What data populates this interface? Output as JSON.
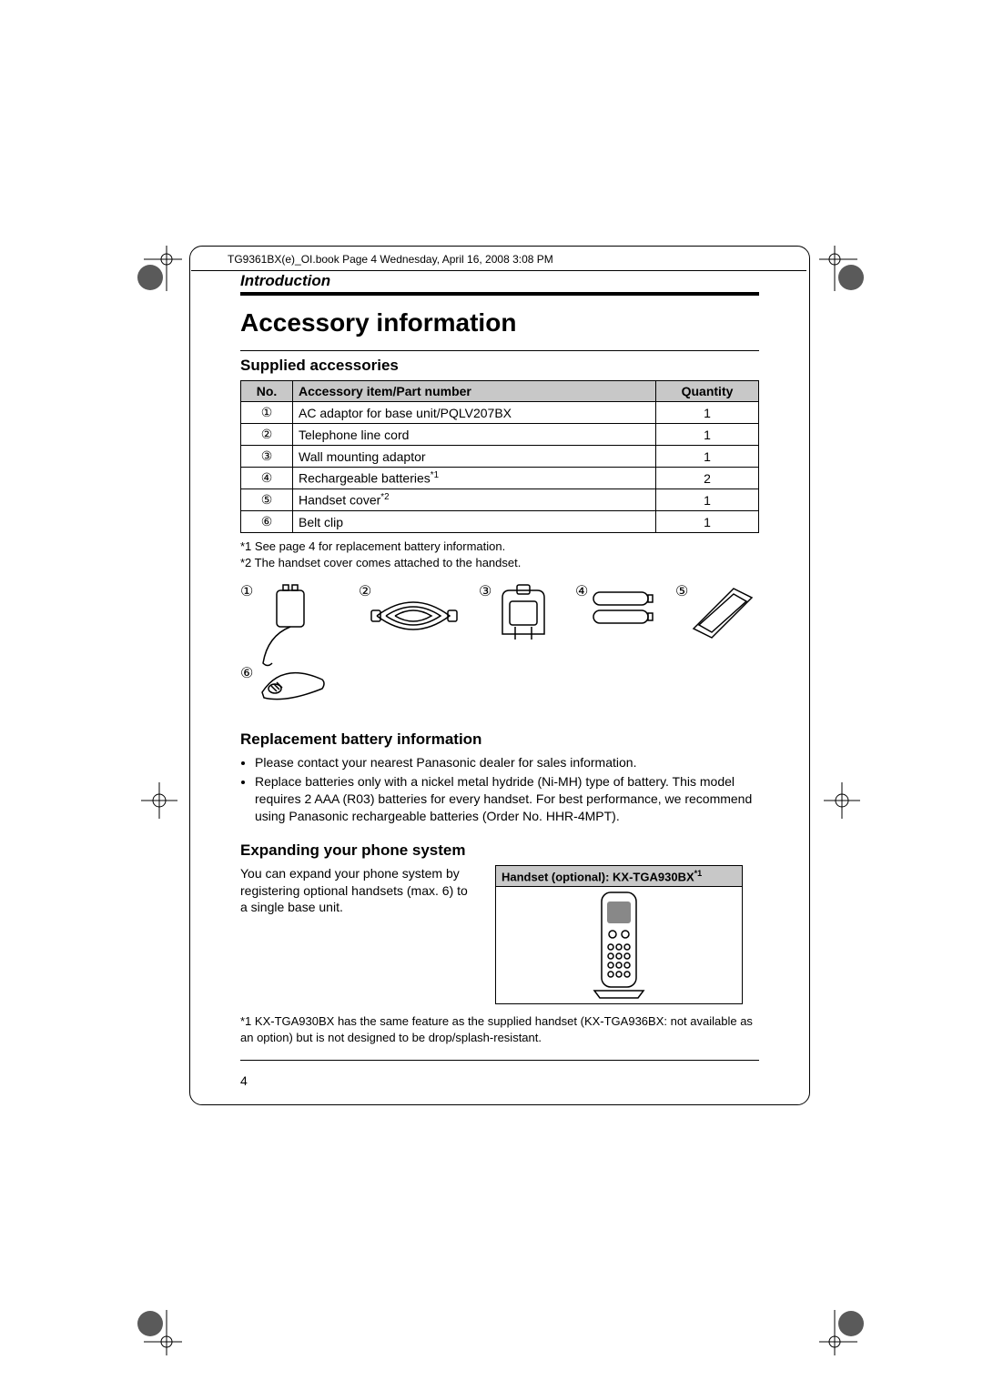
{
  "file_line": "TG9361BX(e)_OI.book  Page 4  Wednesday, April 16, 2008  3:08 PM",
  "section_label": "Introduction",
  "page_title": "Accessory information",
  "supplied": {
    "heading": "Supplied accessories",
    "columns": {
      "no": "No.",
      "item": "Accessory item/Part number",
      "qty": "Quantity"
    },
    "rows": [
      {
        "no": "①",
        "item": "AC adaptor for base unit/PQLV207BX",
        "qty": "1",
        "sup": ""
      },
      {
        "no": "②",
        "item": "Telephone line cord",
        "qty": "1",
        "sup": ""
      },
      {
        "no": "③",
        "item": "Wall mounting adaptor",
        "qty": "1",
        "sup": ""
      },
      {
        "no": "④",
        "item": "Rechargeable batteries",
        "qty": "2",
        "sup": "*1"
      },
      {
        "no": "⑤",
        "item": "Handset cover",
        "qty": "1",
        "sup": "*2"
      },
      {
        "no": "⑥",
        "item": "Belt clip",
        "qty": "1",
        "sup": ""
      }
    ],
    "note1": "*1 See page 4 for replacement battery information.",
    "note2": "*2 The handset cover comes attached to the handset.",
    "badges": [
      "①",
      "②",
      "③",
      "④",
      "⑤",
      "⑥"
    ]
  },
  "battery": {
    "heading": "Replacement battery information",
    "bullets": [
      "Please contact your nearest Panasonic dealer for sales information.",
      "Replace batteries only with a nickel metal hydride (Ni-MH) type of battery. This model requires 2 AAA (R03) batteries for every handset. For best performance, we recommend using Panasonic rechargeable batteries (Order No. HHR-4MPT)."
    ]
  },
  "expand": {
    "heading": "Expanding your phone system",
    "text": "You can expand your phone system by registering optional handsets (max. 6) to a single base unit.",
    "box_title": "Handset (optional): KX-TGA930BX",
    "box_sup": "*1",
    "footnote": "*1 KX-TGA930BX has the same feature as the supplied handset (KX-TGA936BX: not available as an option) but is not designed to be drop/splash-resistant."
  },
  "page_number": "4",
  "colors": {
    "header_bg": "#c8c8c8",
    "reg_fill": "#5a5a5a"
  }
}
